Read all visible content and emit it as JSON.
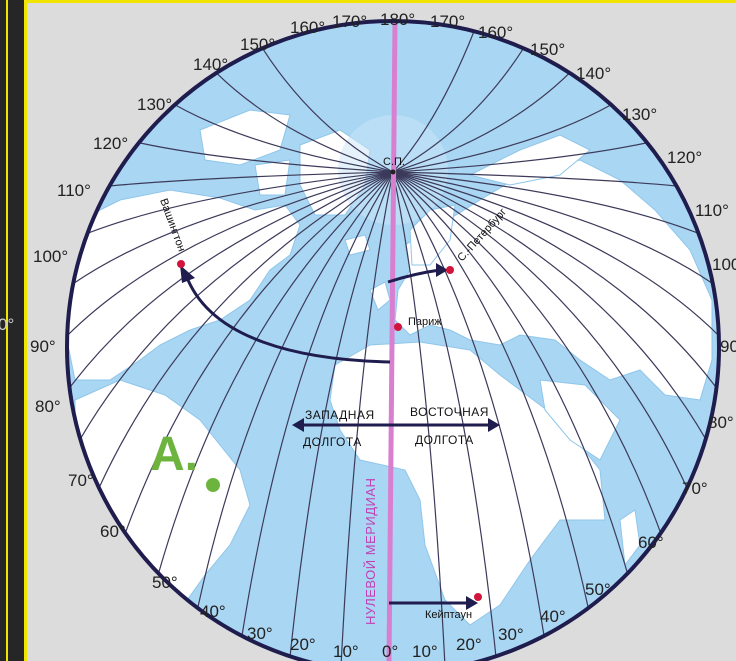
{
  "map": {
    "north_pole": "С.П.",
    "prime_meridian": "НУЛЕВОЙ МЕРИДИАН",
    "west_longitude": [
      "ЗАПАДНАЯ",
      "ДОЛГОТА"
    ],
    "east_longitude": [
      "ВОСТОЧНАЯ",
      "ДОЛГОТА"
    ],
    "marker": "A.",
    "cities": [
      {
        "id": "washington",
        "name": "Вашингтон"
      },
      {
        "id": "st-petersburg",
        "name": "С.-Петербург"
      },
      {
        "id": "paris",
        "name": "Париж"
      },
      {
        "id": "capetown",
        "name": "Кейптаун"
      }
    ],
    "meridian_labels": [
      {
        "id": "top-180",
        "text": "180°"
      },
      {
        "id": "top-170w",
        "text": "170°"
      },
      {
        "id": "top-160w",
        "text": "160°"
      },
      {
        "id": "top-150w",
        "text": "150°"
      },
      {
        "id": "top-140w",
        "text": "140°"
      },
      {
        "id": "top-130w",
        "text": "130°"
      },
      {
        "id": "top-120w",
        "text": "120°"
      },
      {
        "id": "top-110w",
        "text": "110°"
      },
      {
        "id": "top-100w",
        "text": "100°"
      },
      {
        "id": "top-90w",
        "text": "90°"
      },
      {
        "id": "top-80w",
        "text": "80°"
      },
      {
        "id": "top-70w",
        "text": "70°"
      },
      {
        "id": "top-60w",
        "text": "60°"
      },
      {
        "id": "top-50w",
        "text": "50°"
      },
      {
        "id": "top-40w",
        "text": "40°"
      },
      {
        "id": "top-30w",
        "text": "30°"
      },
      {
        "id": "top-20w",
        "text": "20°"
      },
      {
        "id": "top-10w",
        "text": "10°"
      },
      {
        "id": "top-0",
        "text": "0°"
      },
      {
        "id": "top-10e",
        "text": "10°"
      },
      {
        "id": "top-20e",
        "text": "20°"
      },
      {
        "id": "top-30e",
        "text": "30°"
      },
      {
        "id": "top-40e",
        "text": "40°"
      },
      {
        "id": "top-50e",
        "text": "50°"
      },
      {
        "id": "top-60e",
        "text": "60°"
      },
      {
        "id": "top-70e",
        "text": "70°"
      },
      {
        "id": "top-80e",
        "text": "80°"
      },
      {
        "id": "top-90e",
        "text": "90"
      },
      {
        "id": "top-100e",
        "text": "100"
      },
      {
        "id": "top-110e",
        "text": "110°"
      },
      {
        "id": "top-120e",
        "text": "120°"
      },
      {
        "id": "top-130e",
        "text": "130°"
      },
      {
        "id": "top-140e",
        "text": "140°"
      },
      {
        "id": "top-150e",
        "text": "150°"
      },
      {
        "id": "top-160e",
        "text": "160°"
      },
      {
        "id": "top-170e",
        "text": "170°"
      }
    ],
    "edge_fragments": [
      "0°",
      "0°"
    ],
    "colors": {
      "ocean": "#a9d6f3",
      "land": "#ffffff",
      "prime_meridian": "#d87fd0",
      "border": "#1f1c4e",
      "meridian_lines": "#3c3a5a",
      "city_dot": "#d1143b",
      "marker": "#6db43f",
      "label_magenta": "#c040b4",
      "frame_yellow": "#f0e400"
    }
  }
}
